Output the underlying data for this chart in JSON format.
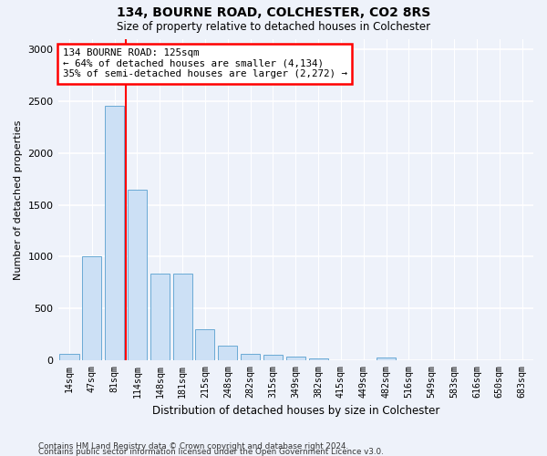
{
  "title": "134, BOURNE ROAD, COLCHESTER, CO2 8RS",
  "subtitle": "Size of property relative to detached houses in Colchester",
  "xlabel": "Distribution of detached houses by size in Colchester",
  "ylabel": "Number of detached properties",
  "bar_color": "#cce0f5",
  "bar_edge_color": "#6aaad4",
  "background_color": "#eef2fa",
  "grid_color": "#ffffff",
  "bin_labels": [
    "14sqm",
    "47sqm",
    "81sqm",
    "114sqm",
    "148sqm",
    "181sqm",
    "215sqm",
    "248sqm",
    "282sqm",
    "315sqm",
    "349sqm",
    "382sqm",
    "415sqm",
    "449sqm",
    "482sqm",
    "516sqm",
    "549sqm",
    "583sqm",
    "616sqm",
    "650sqm",
    "683sqm"
  ],
  "bar_values": [
    60,
    1000,
    2450,
    1650,
    840,
    840,
    300,
    140,
    60,
    55,
    35,
    20,
    0,
    0,
    30,
    5,
    0,
    0,
    0,
    0,
    0
  ],
  "property_label": "134 BOURNE ROAD: 125sqm",
  "pct_smaller_text": "← 64% of detached houses are smaller (4,134)",
  "pct_larger_text": "35% of semi-detached houses are larger (2,272) →",
  "vline_x_index": 2.5,
  "ylim": [
    0,
    3100
  ],
  "yticks": [
    0,
    500,
    1000,
    1500,
    2000,
    2500,
    3000
  ],
  "footnote1": "Contains HM Land Registry data © Crown copyright and database right 2024.",
  "footnote2": "Contains public sector information licensed under the Open Government Licence v3.0."
}
